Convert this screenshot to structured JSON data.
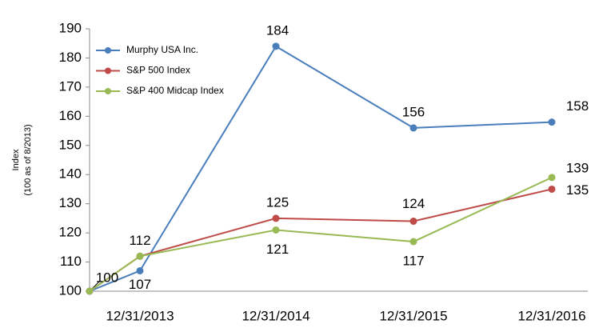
{
  "chart_data": {
    "type": "line",
    "ylabel": "Index",
    "ylabel_note": "(100 as of 8/2013)",
    "categories": [
      null,
      "12/31/2013",
      "12/31/2014",
      "12/31/2015",
      "12/31/2016"
    ],
    "series": [
      {
        "name": "Murphy USA Inc.",
        "color": "#4a7ebb",
        "values": [
          100,
          107,
          184,
          156,
          158
        ]
      },
      {
        "name": "S&P 500 Index",
        "color": "#be4b48",
        "values": [
          100,
          112,
          125,
          124,
          135
        ]
      },
      {
        "name": "S&P 400 Midcap Index",
        "color": "#98b954",
        "values": [
          100,
          112,
          121,
          117,
          139
        ]
      }
    ],
    "ylim": [
      100,
      190
    ],
    "yticks": [
      100,
      110,
      120,
      130,
      140,
      150,
      160,
      170,
      180,
      190
    ],
    "legend": "upper-left"
  }
}
